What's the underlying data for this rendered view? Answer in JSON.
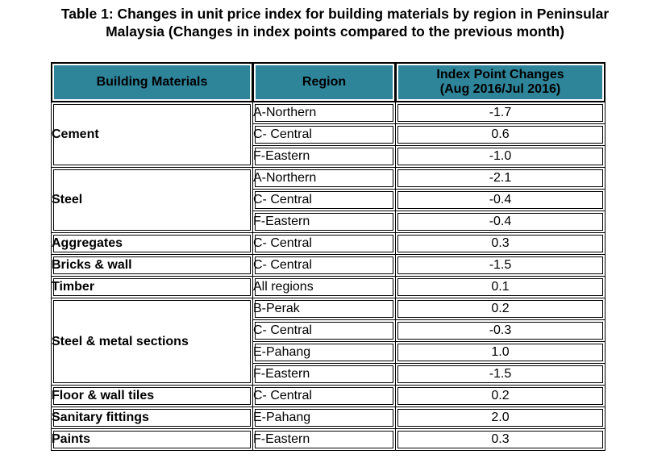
{
  "title": {
    "line1": "Table 1: Changes in unit price index for building materials by region in Peninsular",
    "line2": "Malaysia (Changes in index points compared to the previous month)"
  },
  "header": {
    "materials": "Building Materials",
    "region": "Region",
    "changes_line1": "Index Point Changes",
    "changes_line2": "(Aug 2016/Jul 2016)"
  },
  "groups": [
    {
      "material": "Cement",
      "rows": [
        {
          "region": "A-Northern",
          "value": "-1.7"
        },
        {
          "region": "C- Central",
          "value": "0.6"
        },
        {
          "region": "F-Eastern",
          "value": "-1.0"
        }
      ]
    },
    {
      "material": "Steel",
      "rows": [
        {
          "region": "A-Northern",
          "value": "-2.1"
        },
        {
          "region": "C- Central",
          "value": "-0.4"
        },
        {
          "region": "F-Eastern",
          "value": "-0.4"
        }
      ]
    },
    {
      "material": "Aggregates",
      "rows": [
        {
          "region": "C- Central",
          "value": "0.3"
        }
      ]
    },
    {
      "material": "Bricks & wall",
      "rows": [
        {
          "region": "C- Central",
          "value": "-1.5"
        }
      ]
    },
    {
      "material": "Timber",
      "rows": [
        {
          "region": "All regions",
          "value": "0.1"
        }
      ]
    },
    {
      "material": "Steel & metal sections",
      "rows": [
        {
          "region": "B-Perak",
          "value": "0.2"
        },
        {
          "region": "C- Central",
          "value": "-0.3"
        },
        {
          "region": "E-Pahang",
          "value": "1.0"
        },
        {
          "region": "F-Eastern",
          "value": "-1.5"
        }
      ]
    },
    {
      "material": "Floor & wall tiles",
      "rows": [
        {
          "region": "C- Central",
          "value": "0.2"
        }
      ]
    },
    {
      "material": "Sanitary fittings",
      "rows": [
        {
          "region": "E-Pahang",
          "value": "2.0"
        }
      ]
    },
    {
      "material": "Paints",
      "rows": [
        {
          "region": "F-Eastern",
          "value": "0.3"
        }
      ]
    }
  ]
}
